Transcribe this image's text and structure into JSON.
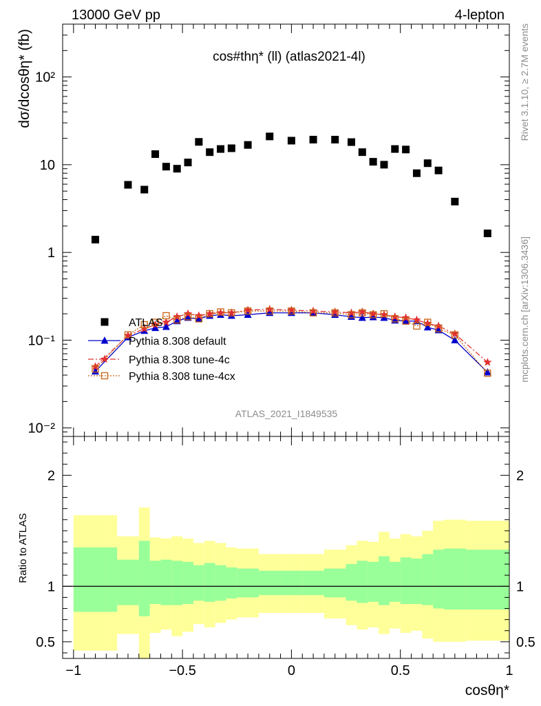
{
  "header": {
    "left": "13000 GeV pp",
    "right": "4-lepton",
    "side_top": "Rivet 3.1.10, ≥ 2.7M events",
    "side_bottom": "mcplots.cern.ch [arXiv:1306.3436]",
    "watermark": "ATLAS_2021_I1849535"
  },
  "chart_data": [
    {
      "type": "scatter",
      "title": "cos#thη* (ll) (atlas2021-4l)",
      "xlabel": "cosθη*",
      "ylabel": "dσ/dcosθη* (fb)",
      "yscale": "log",
      "xlim": [
        -1.05,
        1.0
      ],
      "ylim": [
        0.008,
        400
      ],
      "x_ticks": [
        "−1",
        "−0.5",
        "0",
        "0.5",
        "1"
      ],
      "y_ticks": [
        "10⁻²",
        "10⁻¹",
        "1",
        "10",
        "10²"
      ],
      "legend_position": "lower-left",
      "x": [
        -0.9,
        -0.75,
        -0.675,
        -0.625,
        -0.575,
        -0.525,
        -0.475,
        -0.425,
        -0.375,
        -0.325,
        -0.275,
        -0.2,
        -0.1,
        0.0,
        0.1,
        0.2,
        0.275,
        0.325,
        0.375,
        0.425,
        0.475,
        0.525,
        0.575,
        0.625,
        0.675,
        0.75,
        0.9
      ],
      "series": [
        {
          "name": "ATLAS",
          "color": "#000000",
          "marker": "square",
          "values": [
            1.4,
            5.9,
            5.2,
            13.2,
            9.5,
            9.0,
            10.6,
            18.2,
            13.9,
            15.1,
            15.4,
            16.8,
            21.0,
            18.8,
            19.3,
            19.3,
            18.1,
            13.9,
            10.8,
            10.0,
            15.1,
            14.9,
            8.0,
            10.4,
            8.6,
            3.8,
            1.65
          ]
        },
        {
          "name": "Pythia 8.308 default",
          "color": "#0000cc",
          "marker": "triangle",
          "line": "solid",
          "values": [
            0.044,
            0.108,
            0.128,
            0.138,
            0.142,
            0.165,
            0.18,
            0.175,
            0.19,
            0.195,
            0.19,
            0.195,
            0.205,
            0.205,
            0.205,
            0.195,
            0.185,
            0.18,
            0.183,
            0.18,
            0.168,
            0.165,
            0.165,
            0.14,
            0.13,
            0.1,
            0.043
          ]
        },
        {
          "name": "Pythia 8.308 tune-4c",
          "color": "#e03030",
          "marker": "star",
          "line": "dashdot",
          "values": [
            0.05,
            0.113,
            0.135,
            0.15,
            0.16,
            0.185,
            0.2,
            0.19,
            0.2,
            0.205,
            0.205,
            0.22,
            0.225,
            0.22,
            0.215,
            0.21,
            0.205,
            0.21,
            0.2,
            0.195,
            0.185,
            0.18,
            0.17,
            0.155,
            0.145,
            0.118,
            0.056
          ]
        },
        {
          "name": "Pythia 8.308 tune-4cx",
          "color": "#c86414",
          "marker": "open-square",
          "line": "dotted",
          "values": [
            0.047,
            0.115,
            0.15,
            0.16,
            0.19,
            0.17,
            0.185,
            0.175,
            0.2,
            0.21,
            0.205,
            0.215,
            0.215,
            0.215,
            0.205,
            0.205,
            0.195,
            0.205,
            0.195,
            0.2,
            0.175,
            0.165,
            0.145,
            0.16,
            0.135,
            0.115,
            0.042
          ]
        }
      ]
    },
    {
      "type": "area",
      "ylabel": "Ratio to ATLAS",
      "xlim": [
        -1.05,
        1.0
      ],
      "ylim": [
        0.35,
        2.35
      ],
      "y_ticks": [
        "0.5",
        "1",
        "2"
      ],
      "bin_edges": [
        -1.0,
        -0.85,
        -0.8,
        -0.7,
        -0.65,
        -0.6,
        -0.55,
        -0.5,
        -0.45,
        -0.4,
        -0.35,
        -0.3,
        -0.25,
        -0.15,
        -0.05,
        0.05,
        0.15,
        0.25,
        0.3,
        0.35,
        0.4,
        0.45,
        0.5,
        0.55,
        0.6,
        0.65,
        0.7,
        0.8,
        1.0
      ],
      "band_outer": {
        "name": "total uncertainty",
        "color": "#ffff99",
        "lower": [
          0.42,
          0.42,
          0.57,
          0.35,
          0.58,
          0.61,
          0.55,
          0.59,
          0.66,
          0.63,
          0.67,
          0.7,
          0.72,
          0.76,
          0.76,
          0.76,
          0.71,
          0.65,
          0.61,
          0.63,
          0.57,
          0.62,
          0.58,
          0.6,
          0.53,
          0.5,
          0.5,
          0.51
        ],
        "upper": [
          1.64,
          1.64,
          1.45,
          1.71,
          1.44,
          1.43,
          1.45,
          1.43,
          1.39,
          1.41,
          1.39,
          1.35,
          1.34,
          1.29,
          1.29,
          1.29,
          1.33,
          1.37,
          1.41,
          1.4,
          1.49,
          1.43,
          1.47,
          1.45,
          1.5,
          1.59,
          1.6,
          1.59
        ]
      },
      "band_inner": {
        "name": "statistical uncertainty",
        "color": "#99ff99",
        "lower": [
          0.77,
          0.77,
          0.83,
          0.73,
          0.84,
          0.83,
          0.83,
          0.84,
          0.87,
          0.86,
          0.87,
          0.89,
          0.9,
          0.92,
          0.92,
          0.92,
          0.9,
          0.87,
          0.85,
          0.86,
          0.83,
          0.86,
          0.84,
          0.84,
          0.83,
          0.8,
          0.79,
          0.79
        ],
        "upper": [
          1.35,
          1.35,
          1.24,
          1.41,
          1.23,
          1.24,
          1.23,
          1.22,
          1.19,
          1.21,
          1.19,
          1.17,
          1.16,
          1.14,
          1.14,
          1.14,
          1.16,
          1.2,
          1.23,
          1.22,
          1.27,
          1.22,
          1.26,
          1.25,
          1.29,
          1.33,
          1.34,
          1.33
        ]
      },
      "reference_line": 1
    }
  ]
}
